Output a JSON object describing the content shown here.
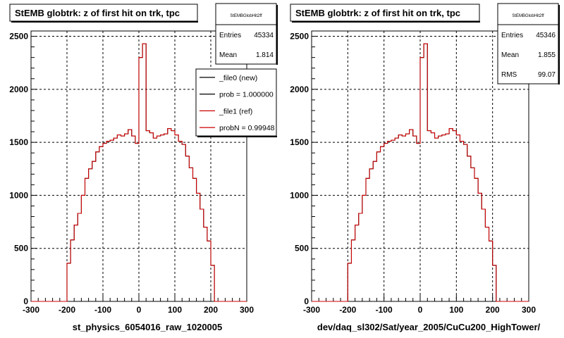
{
  "footer_text": "",
  "colors": {
    "new_line": "#000000",
    "ref_line": "#cc0000",
    "frame": "#000000",
    "grid": "#000000",
    "background": "#ffffff"
  },
  "panels": [
    {
      "title": "StEMB globtrk: z of first hit on trk, tpc",
      "xlabel": "st_physics_6054016_raw_1020005",
      "stats": {
        "name": "StEMBGlobHit2ff",
        "rows": [
          {
            "label": "Entries",
            "value": "45334"
          },
          {
            "label": "Mean",
            "value": "1.814"
          }
        ]
      },
      "legend": {
        "placement": "top-right",
        "entries": [
          {
            "label": "_file0 (new)",
            "color": "#000000"
          },
          {
            "label": "prob = 1.000000",
            "color": "#000000"
          },
          {
            "label": "_file1 (ref)",
            "color": "#cc0000"
          },
          {
            "label": "probN = 0.99948",
            "color": "#cc0000"
          }
        ]
      }
    },
    {
      "title": "StEMB globtrk: z of first hit on trk, tpc",
      "xlabel": "dev/daq_sl302/Sat/year_2005/CuCu200_HighTower/",
      "stats": {
        "name": "StEMBGlobHit2ff",
        "rows": [
          {
            "label": "Entries",
            "value": "45346"
          },
          {
            "label": "Mean",
            "value": "1.855"
          },
          {
            "label": "RMS",
            "value": "99.07"
          }
        ]
      },
      "legend": null
    }
  ],
  "chart_data": [
    {
      "type": "step",
      "grid": true,
      "xlim": [
        -300,
        300
      ],
      "ylim": [
        0,
        2550
      ],
      "xticks": [
        -300,
        -200,
        -100,
        0,
        100,
        200,
        300
      ],
      "yticks": [
        0,
        500,
        1000,
        1500,
        2000,
        2500
      ],
      "bin_width": 10,
      "x_start": -300,
      "series": [
        {
          "name": "_file0 (new)",
          "values": [
            0,
            0,
            0,
            0,
            0,
            0,
            0,
            0,
            0,
            0,
            360,
            580,
            720,
            830,
            1000,
            1160,
            1250,
            1320,
            1410,
            1460,
            1490,
            1510,
            1520,
            1540,
            1570,
            1560,
            1580,
            1620,
            1560,
            1490,
            2300,
            2430,
            1610,
            1590,
            1540,
            1560,
            1570,
            1580,
            1630,
            1610,
            1570,
            1510,
            1480,
            1370,
            1260,
            1160,
            1020,
            870,
            700,
            570,
            340,
            0,
            0,
            0,
            0,
            0,
            0,
            0,
            0,
            0
          ]
        },
        {
          "name": "_file1 (ref)",
          "values": [
            0,
            0,
            0,
            0,
            0,
            0,
            0,
            0,
            0,
            0,
            360,
            580,
            720,
            830,
            1000,
            1160,
            1250,
            1320,
            1410,
            1460,
            1490,
            1510,
            1520,
            1540,
            1570,
            1560,
            1580,
            1620,
            1560,
            1490,
            2300,
            2430,
            1610,
            1590,
            1540,
            1560,
            1570,
            1580,
            1630,
            1610,
            1570,
            1510,
            1480,
            1370,
            1260,
            1160,
            1020,
            870,
            700,
            570,
            340,
            0,
            0,
            0,
            0,
            0,
            0,
            0,
            0,
            0
          ]
        }
      ]
    },
    {
      "type": "step",
      "grid": true,
      "xlim": [
        -300,
        300
      ],
      "ylim": [
        0,
        2550
      ],
      "xticks": [
        -300,
        -200,
        -100,
        0,
        100,
        200,
        300
      ],
      "yticks": [
        0,
        500,
        1000,
        1500,
        2000,
        2500
      ],
      "bin_width": 10,
      "x_start": -300,
      "series": [
        {
          "name": "_file0 (new)",
          "values": [
            0,
            0,
            0,
            0,
            0,
            0,
            0,
            0,
            0,
            0,
            360,
            580,
            720,
            830,
            1000,
            1160,
            1250,
            1320,
            1410,
            1460,
            1490,
            1510,
            1520,
            1540,
            1570,
            1560,
            1580,
            1620,
            1560,
            1490,
            2300,
            2430,
            1610,
            1590,
            1540,
            1560,
            1570,
            1580,
            1630,
            1610,
            1570,
            1510,
            1480,
            1370,
            1260,
            1160,
            1020,
            870,
            700,
            570,
            340,
            0,
            0,
            0,
            0,
            0,
            0,
            0,
            0,
            0
          ]
        },
        {
          "name": "_file1 (ref)",
          "values": [
            0,
            0,
            0,
            0,
            0,
            0,
            0,
            0,
            0,
            0,
            360,
            580,
            720,
            830,
            1000,
            1160,
            1250,
            1320,
            1410,
            1460,
            1490,
            1510,
            1520,
            1540,
            1570,
            1560,
            1580,
            1620,
            1560,
            1490,
            2300,
            2430,
            1610,
            1590,
            1540,
            1560,
            1570,
            1580,
            1630,
            1610,
            1570,
            1510,
            1480,
            1370,
            1260,
            1160,
            1020,
            870,
            700,
            570,
            340,
            0,
            0,
            0,
            0,
            0,
            0,
            0,
            0,
            0
          ]
        }
      ]
    }
  ]
}
